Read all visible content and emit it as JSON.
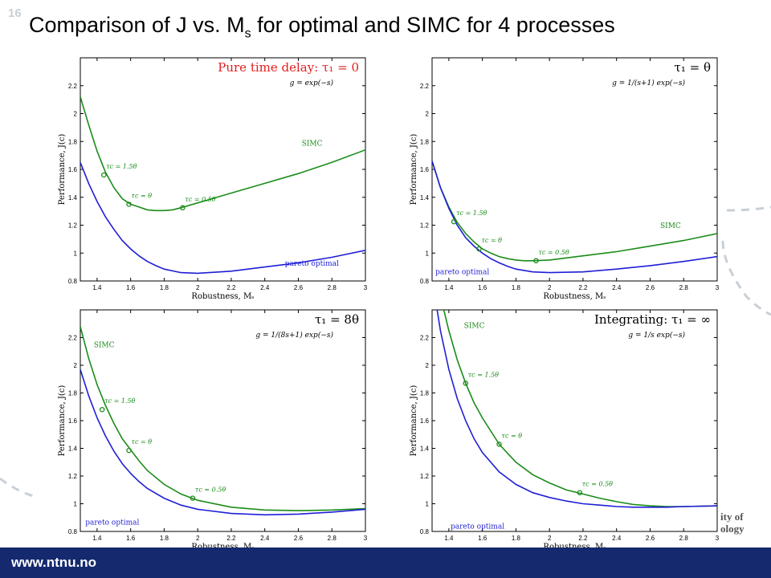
{
  "slide_number": "16",
  "title": {
    "main": "Comparison of J vs. M",
    "sub": "s",
    "rest": " for optimal and SIMC for 4 processes"
  },
  "footer": {
    "url": "www.ntnu.no"
  },
  "logo_fragment": {
    "line1": "ity of",
    "line2": "ology"
  },
  "colors": {
    "simc": "#1a8c1a",
    "pareto": "#1f1fd6",
    "footer_bg": "#14296e",
    "heading_red": "#e02020"
  },
  "chart_data": [
    {
      "type": "line",
      "heading": "Pure time delay: τ₁ = 0",
      "heading_color": "#e02020",
      "formula": "g = exp(−s)",
      "xlabel": "Robustness, Mₛ",
      "ylabel": "Performance, J(c)",
      "xlim": [
        1.3,
        3.0
      ],
      "ylim": [
        0.8,
        2.4
      ],
      "xticks": [
        "1.4",
        "1.6",
        "1.8",
        "2",
        "2.2",
        "2.4",
        "2.6",
        "2.8",
        "3"
      ],
      "yticks": [
        "0.8",
        "1",
        "1.2",
        "1.4",
        "1.6",
        "1.8",
        "2",
        "2.2"
      ],
      "series": [
        {
          "name": "SIMC",
          "color": "#1a8c1a",
          "x": [
            1.3,
            1.35,
            1.4,
            1.45,
            1.5,
            1.55,
            1.6,
            1.65,
            1.7,
            1.75,
            1.8,
            1.85,
            1.9,
            2.0,
            2.2,
            2.4,
            2.6,
            2.8,
            3.0
          ],
          "y": [
            2.12,
            1.92,
            1.73,
            1.58,
            1.47,
            1.39,
            1.35,
            1.33,
            1.31,
            1.305,
            1.305,
            1.31,
            1.325,
            1.36,
            1.43,
            1.5,
            1.57,
            1.65,
            1.74
          ]
        },
        {
          "name": "pareto optimal",
          "color": "#1f1fd6",
          "x": [
            1.3,
            1.35,
            1.4,
            1.45,
            1.5,
            1.55,
            1.6,
            1.65,
            1.7,
            1.75,
            1.8,
            1.9,
            2.0,
            2.2,
            2.4,
            2.6,
            2.8,
            3.0
          ],
          "y": [
            1.65,
            1.5,
            1.37,
            1.26,
            1.17,
            1.09,
            1.03,
            0.98,
            0.94,
            0.91,
            0.885,
            0.86,
            0.855,
            0.87,
            0.9,
            0.93,
            0.97,
            1.02
          ]
        }
      ],
      "markers": [
        {
          "label": "τc = 1.5θ",
          "x": 1.44,
          "y": 1.56
        },
        {
          "label": "τc = θ",
          "x": 1.59,
          "y": 1.35
        },
        {
          "label": "τc = 0.5θ",
          "x": 1.91,
          "y": 1.325
        }
      ],
      "series_labels": [
        {
          "text": "SIMC",
          "x": 2.62,
          "y": 1.77,
          "color": "#1a8c1a"
        },
        {
          "text": "pareto optimal",
          "x": 2.52,
          "y": 0.91,
          "color": "#1f1fd6"
        }
      ]
    },
    {
      "type": "line",
      "heading": "τ₁ = θ",
      "heading_color": "#000000",
      "formula": "g = 1/(s+1) exp(−s)",
      "xlabel": "Robustness, Mₛ",
      "ylabel": "Performance, J(c)",
      "xlim": [
        1.3,
        3.0
      ],
      "ylim": [
        0.8,
        2.4
      ],
      "xticks": [
        "1.4",
        "1.6",
        "1.8",
        "2",
        "2.2",
        "2.4",
        "2.6",
        "2.8",
        "3"
      ],
      "yticks": [
        "0.8",
        "1",
        "1.2",
        "1.4",
        "1.6",
        "1.8",
        "2",
        "2.2"
      ],
      "series": [
        {
          "name": "SIMC",
          "color": "#1a8c1a",
          "x": [
            1.3,
            1.35,
            1.4,
            1.45,
            1.5,
            1.55,
            1.6,
            1.65,
            1.7,
            1.75,
            1.8,
            1.85,
            1.9,
            2.0,
            2.2,
            2.4,
            2.6,
            2.8,
            3.0
          ],
          "y": [
            1.66,
            1.47,
            1.33,
            1.22,
            1.14,
            1.08,
            1.03,
            1.0,
            0.975,
            0.96,
            0.95,
            0.945,
            0.945,
            0.95,
            0.98,
            1.01,
            1.05,
            1.09,
            1.14
          ]
        },
        {
          "name": "pareto optimal",
          "color": "#1f1fd6",
          "x": [
            1.3,
            1.35,
            1.4,
            1.45,
            1.5,
            1.55,
            1.6,
            1.65,
            1.7,
            1.75,
            1.8,
            1.9,
            2.0,
            2.2,
            2.4,
            2.6,
            2.8,
            3.0
          ],
          "y": [
            1.66,
            1.47,
            1.32,
            1.2,
            1.11,
            1.05,
            1.0,
            0.96,
            0.93,
            0.905,
            0.885,
            0.865,
            0.86,
            0.865,
            0.885,
            0.91,
            0.94,
            0.975
          ]
        }
      ],
      "markers": [
        {
          "label": "τc = 1.5θ",
          "x": 1.43,
          "y": 1.225
        },
        {
          "label": "τc = θ",
          "x": 1.58,
          "y": 1.03
        },
        {
          "label": "τc = 0.5θ",
          "x": 1.92,
          "y": 0.945
        }
      ],
      "series_labels": [
        {
          "text": "SIMC",
          "x": 2.66,
          "y": 1.18,
          "color": "#1a8c1a"
        },
        {
          "text": "pareto optimal",
          "x": 1.32,
          "y": 0.85,
          "color": "#1f1fd6"
        }
      ]
    },
    {
      "type": "line",
      "heading": "τ₁ = 8θ",
      "heading_color": "#000000",
      "formula": "g = 1/(8s+1) exp(−s)",
      "xlabel": "Robustness, Mₛ",
      "ylabel": "Performance, J(c)",
      "xlim": [
        1.3,
        3.0
      ],
      "ylim": [
        0.8,
        2.4
      ],
      "xticks": [
        "1.4",
        "1.6",
        "1.8",
        "2",
        "2.2",
        "2.4",
        "2.6",
        "2.8",
        "3"
      ],
      "yticks": [
        "0.8",
        "1",
        "1.2",
        "1.4",
        "1.6",
        "1.8",
        "2",
        "2.2"
      ],
      "series": [
        {
          "name": "SIMC",
          "color": "#1a8c1a",
          "x": [
            1.3,
            1.35,
            1.4,
            1.45,
            1.5,
            1.55,
            1.6,
            1.65,
            1.7,
            1.8,
            1.9,
            2.0,
            2.2,
            2.4,
            2.6,
            2.8,
            3.0
          ],
          "y": [
            2.28,
            2.05,
            1.86,
            1.71,
            1.58,
            1.47,
            1.39,
            1.31,
            1.24,
            1.14,
            1.07,
            1.025,
            0.975,
            0.955,
            0.95,
            0.955,
            0.965
          ]
        },
        {
          "name": "pareto optimal",
          "color": "#1f1fd6",
          "x": [
            1.3,
            1.35,
            1.4,
            1.45,
            1.5,
            1.55,
            1.6,
            1.65,
            1.7,
            1.8,
            1.9,
            2.0,
            2.2,
            2.4,
            2.6,
            2.8,
            3.0
          ],
          "y": [
            1.97,
            1.78,
            1.62,
            1.49,
            1.38,
            1.29,
            1.22,
            1.16,
            1.11,
            1.04,
            0.99,
            0.96,
            0.93,
            0.92,
            0.925,
            0.94,
            0.96
          ]
        }
      ],
      "markers": [
        {
          "label": "τc = 1.5θ",
          "x": 1.43,
          "y": 1.68
        },
        {
          "label": "τc = θ",
          "x": 1.59,
          "y": 1.385
        },
        {
          "label": "τc = 0.5θ",
          "x": 1.97,
          "y": 1.04
        }
      ],
      "series_labels": [
        {
          "text": "SIMC",
          "x": 1.38,
          "y": 2.13,
          "color": "#1a8c1a"
        },
        {
          "text": "pareto optimal",
          "x": 1.33,
          "y": 0.85,
          "color": "#1f1fd6"
        }
      ]
    },
    {
      "type": "line",
      "heading": "Integrating: τ₁ = ∞",
      "heading_color": "#000000",
      "formula": "g = 1/s exp(−s)",
      "xlabel": "Robustness, Mₛ",
      "ylabel": "Performance, J(c)",
      "xlim": [
        1.3,
        3.0
      ],
      "ylim": [
        0.8,
        2.4
      ],
      "xticks": [
        "1.4",
        "1.6",
        "1.8",
        "2",
        "2.2",
        "2.4",
        "2.6",
        "2.8",
        "3"
      ],
      "yticks": [
        "0.8",
        "1",
        "1.2",
        "1.4",
        "1.6",
        "1.8",
        "2",
        "2.2"
      ],
      "series": [
        {
          "name": "SIMC",
          "color": "#1a8c1a",
          "x": [
            1.37,
            1.4,
            1.45,
            1.5,
            1.55,
            1.6,
            1.7,
            1.8,
            1.9,
            2.0,
            2.1,
            2.2,
            2.3,
            2.4,
            2.5,
            2.6,
            2.7,
            2.8,
            3.0
          ],
          "y": [
            2.4,
            2.25,
            2.04,
            1.87,
            1.73,
            1.62,
            1.43,
            1.3,
            1.21,
            1.15,
            1.1,
            1.07,
            1.04,
            1.015,
            0.995,
            0.985,
            0.98,
            0.98,
            0.985
          ]
        },
        {
          "name": "pareto optimal",
          "color": "#1f1fd6",
          "x": [
            1.33,
            1.35,
            1.4,
            1.45,
            1.5,
            1.55,
            1.6,
            1.7,
            1.8,
            1.9,
            2.0,
            2.1,
            2.2,
            2.3,
            2.4,
            2.5,
            2.6,
            2.7,
            2.8,
            3.0
          ],
          "y": [
            2.4,
            2.25,
            1.97,
            1.76,
            1.6,
            1.47,
            1.37,
            1.23,
            1.14,
            1.08,
            1.045,
            1.02,
            1.0,
            0.99,
            0.98,
            0.975,
            0.975,
            0.975,
            0.98,
            0.985
          ]
        }
      ],
      "markers": [
        {
          "label": "τc = 1.5θ",
          "x": 1.5,
          "y": 1.87
        },
        {
          "label": "τc = θ",
          "x": 1.7,
          "y": 1.43
        },
        {
          "label": "τc = 0.5θ",
          "x": 2.18,
          "y": 1.08
        }
      ],
      "series_labels": [
        {
          "text": "SIMC",
          "x": 1.49,
          "y": 2.27,
          "color": "#1a8c1a"
        },
        {
          "text": "pareto optimal",
          "x": 1.41,
          "y": 0.82,
          "color": "#1f1fd6"
        }
      ]
    }
  ]
}
